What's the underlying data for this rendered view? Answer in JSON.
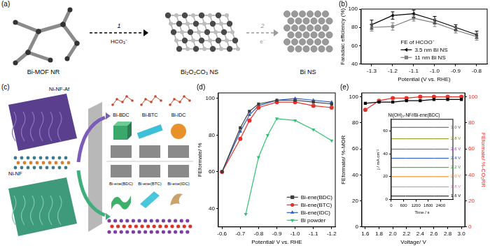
{
  "diagram_a": {
    "panel": "(a)",
    "nodes": [
      {
        "label": "Bi-MOF NR"
      },
      {
        "label": "Bi₂O₂CO₃ NS"
      },
      {
        "label": "Bi NS"
      }
    ],
    "edges": [
      {
        "from": 0,
        "to": 1,
        "step": "1",
        "reagent": "HCO₃⁻"
      },
      {
        "from": 1,
        "to": 2,
        "step": "2",
        "reagent": "e⁻"
      }
    ]
  },
  "diagram_c": {
    "panel": "(c)",
    "substrates": [
      "Ni-NF-Af",
      "Ni-NF"
    ],
    "precursors": [
      "Bi-BDC",
      "Bi-BTC",
      "Bi-IDC"
    ],
    "products": [
      "Bi-ene(BDC)",
      "Bi-ene(BTC)",
      "Bi-ene(IDC)"
    ]
  },
  "chart_data": [
    {
      "panel": "(b)",
      "type": "line",
      "x_label": "Potential (V vs. RHE)",
      "y_label": "Faradaic efficiency (%)",
      "x": [
        -1.3,
        -1.2,
        -1.1,
        -1.0,
        -0.9,
        -0.8
      ],
      "xlim": [
        -1.35,
        -0.75
      ],
      "xticks": [
        -1.3,
        -1.2,
        -1.1,
        {
          "value": -1.0,
          "label": "-1.0"
        },
        -0.9,
        -0.8
      ],
      "ylim": [
        40,
        100
      ],
      "yticks": [
        40,
        60,
        80,
        100
      ],
      "grid": false,
      "legend": "lower center",
      "legend_title": "FE of HCOO⁻",
      "series": [
        {
          "name": "3.5 nm Bi NS",
          "color": "#000000",
          "marker": "triangle-left",
          "values": [
            83,
            93,
            95,
            88,
            80,
            72
          ],
          "errors": [
            5,
            4,
            4,
            4,
            3,
            4
          ]
        },
        {
          "name": "11 nm Bi NS",
          "color": "#808080",
          "marker": "square",
          "values": [
            80,
            81,
            90,
            85,
            77,
            70
          ],
          "errors": [
            4,
            4,
            3,
            4,
            3,
            4
          ]
        }
      ]
    },
    {
      "panel": "(d)",
      "type": "line",
      "x_label": "Potential/ V vs. RHE",
      "y_label": "FEformate/ %",
      "xlim": [
        -0.58,
        -1.22
      ],
      "xticks": [
        -0.6,
        -0.7,
        -0.8,
        -0.9,
        {
          "value": -1.0,
          "label": "-1.0"
        },
        -1.1,
        -1.2
      ],
      "ylim": [
        30,
        103
      ],
      "yticks": [
        40,
        60,
        80,
        100
      ],
      "grid": false,
      "legend": "lower right",
      "series": [
        {
          "name": "Bi-ene(BDC)",
          "color": "#3c3c3c",
          "marker": "square",
          "x": [
            -0.6,
            -0.7,
            -0.75,
            -0.8,
            -0.9,
            -1.0,
            -1.1,
            -1.2
          ],
          "values": [
            60,
            84,
            93,
            97,
            99,
            99,
            98,
            97
          ]
        },
        {
          "name": "Bi-ene(BTC)",
          "color": "#e8302b",
          "marker": "circle",
          "x": [
            -0.6,
            -0.7,
            -0.75,
            -0.8,
            -0.9,
            -1.0,
            -1.1,
            -1.2
          ],
          "values": [
            60,
            78,
            88,
            95,
            98,
            98,
            96,
            95
          ]
        },
        {
          "name": "Bi-ene(IDC)",
          "color": "#2a5cc8",
          "marker": "triangle",
          "x": [
            -0.6,
            -0.7,
            -0.75,
            -0.8,
            -0.9,
            -1.0,
            -1.1,
            -1.2
          ],
          "values": [
            60,
            82,
            91,
            96,
            99,
            100,
            99,
            98
          ]
        },
        {
          "name": "Bi powder",
          "color": "#2ec46f",
          "marker": "triangle-down",
          "x": [
            -0.73,
            -0.8,
            -0.85,
            -0.9,
            -1.0,
            -1.1,
            -1.2
          ],
          "values": [
            37,
            68,
            80,
            89,
            88,
            83,
            77
          ]
        }
      ]
    },
    {
      "panel": "(e)",
      "type": "line",
      "x_label": "Voltage/ V",
      "y_label": "FEformate/ %-MOR",
      "y2_label": "FEformate/ %-CO₂RR",
      "x": [
        1.6,
        1.8,
        2.0,
        2.2,
        2.4,
        2.6,
        2.8,
        3.0
      ],
      "xlim": [
        1.55,
        3.05
      ],
      "xticks": [
        1.6,
        1.8,
        {
          "value": 2.0,
          "label": "2.0"
        },
        2.2,
        2.4,
        2.6,
        2.8,
        {
          "value": 3.0,
          "label": "3.0"
        }
      ],
      "ylim": [
        0,
        103
      ],
      "yticks": [
        0,
        20,
        40,
        60,
        80,
        100
      ],
      "y2lim": [
        0,
        103
      ],
      "y2ticks": [
        0,
        20,
        40,
        60,
        80,
        100
      ],
      "grid": false,
      "series": [
        {
          "color": "#000000",
          "marker": "square",
          "values": [
            95,
            96,
            96,
            97,
            97,
            98,
            98,
            98
          ]
        },
        {
          "color": "#e8302b",
          "marker": "circle",
          "axis": "y2",
          "values": [
            90,
            97,
            99,
            99,
            100,
            100,
            100,
            100
          ]
        }
      ],
      "inset": {
        "type": "line",
        "title": "Ni(OH)₂-NF//Bi-ene(BDC)",
        "x_label": "Time / s",
        "y_label": "j / mA cm⁻²",
        "x": [
          0,
          700,
          1400,
          2100,
          2800
        ],
        "xlim": [
          0,
          3000
        ],
        "xticks": [
          0,
          600,
          1200,
          1800,
          2400
        ],
        "ylim": [
          0,
          70
        ],
        "yticks": [
          0,
          20,
          40,
          60
        ],
        "grid": false,
        "legend": "inline",
        "series": [
          {
            "name": "3.0 V",
            "color": "#555555",
            "values": [
              63,
              63,
              63,
              63,
              63
            ]
          },
          {
            "name": "2.8 V",
            "color": "#8b8b00",
            "values": [
              53,
              53,
              53,
              53,
              53
            ]
          },
          {
            "name": "2.6 V",
            "color": "#9b30d0",
            "values": [
              44,
              44,
              44,
              44,
              44
            ]
          },
          {
            "name": "2.4 V",
            "color": "#1f4fd8",
            "values": [
              36,
              36,
              36,
              36,
              36
            ]
          },
          {
            "name": "2.2 V",
            "color": "#2ca02c",
            "values": [
              28,
              28,
              28,
              28,
              28
            ]
          },
          {
            "name": "2.0 V",
            "color": "#ff7f0e",
            "values": [
              20,
              20,
              20,
              20,
              20
            ]
          },
          {
            "name": "1.8 V",
            "color": "#e377c2",
            "values": [
              11,
              11,
              11,
              11,
              11
            ]
          },
          {
            "name": "1.6 V",
            "color": "#000000",
            "values": [
              3,
              3,
              3,
              3,
              3
            ]
          }
        ]
      }
    }
  ]
}
